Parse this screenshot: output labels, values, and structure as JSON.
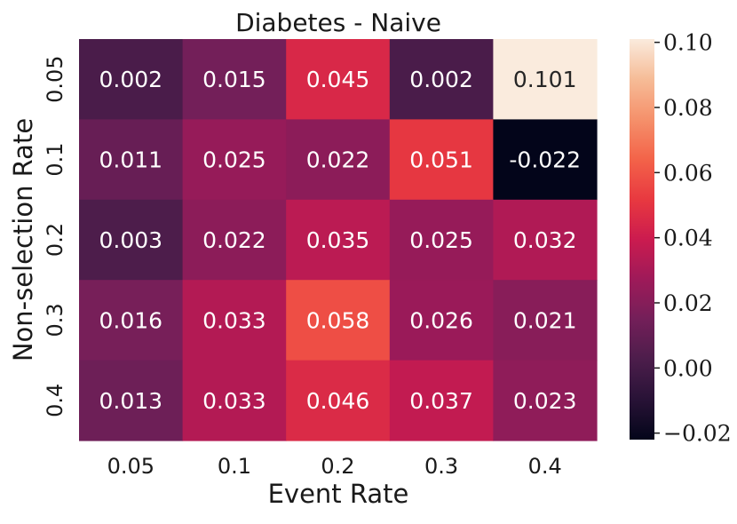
{
  "chart_data": {
    "type": "heatmap",
    "title": "Diabetes - Naive",
    "xlabel": "Event Rate",
    "ylabel": "Non-selection Rate",
    "x_categories": [
      "0.05",
      "0.1",
      "0.2",
      "0.3",
      "0.4"
    ],
    "y_categories": [
      "0.05",
      "0.1",
      "0.2",
      "0.3",
      "0.4"
    ],
    "values": [
      [
        0.002,
        0.015,
        0.045,
        0.002,
        0.101
      ],
      [
        0.011,
        0.025,
        0.022,
        0.051,
        -0.022
      ],
      [
        0.003,
        0.022,
        0.035,
        0.025,
        0.032
      ],
      [
        0.016,
        0.033,
        0.058,
        0.026,
        0.021
      ],
      [
        0.013,
        0.033,
        0.046,
        0.037,
        0.023
      ]
    ],
    "cell_labels": [
      [
        "0.002",
        "0.015",
        "0.045",
        "0.002",
        "0.101"
      ],
      [
        "0.011",
        "0.025",
        "0.022",
        "0.051",
        "-0.022"
      ],
      [
        "0.003",
        "0.022",
        "0.035",
        "0.025",
        "0.032"
      ],
      [
        "0.016",
        "0.033",
        "0.058",
        "0.026",
        "0.021"
      ],
      [
        "0.013",
        "0.033",
        "0.046",
        "0.037",
        "0.023"
      ]
    ],
    "colorbar": {
      "vmin": -0.022,
      "vmax": 0.101,
      "ticks": [
        0.1,
        0.08,
        0.06,
        0.04,
        0.02,
        0.0,
        -0.02
      ],
      "tick_labels": [
        "0.10",
        "0.08",
        "0.06",
        "0.04",
        "0.02",
        "0.00",
        "−0.02"
      ],
      "colormap": "rocket"
    }
  }
}
